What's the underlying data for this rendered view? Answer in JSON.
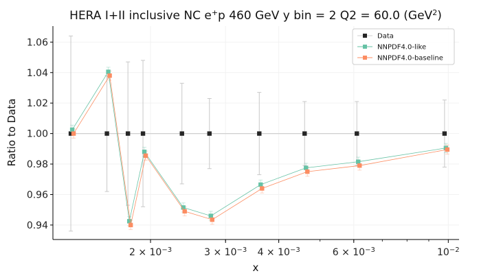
{
  "chart_data": {
    "type": "line",
    "title": "HERA I+II inclusive NC e$^+$p 460 GeV y bin = 2 Q2 = 60.0 (GeV$^2$)",
    "title_parts": {
      "prefix": "HERA I+II inclusive NC e",
      "sup1": "+",
      "middle": "p 460 GeV y bin = 2 Q2 = 60.0 (GeV",
      "sup2": "2",
      "suffix": ")"
    },
    "xlabel": "x",
    "ylabel": "Ratio to Data",
    "xscale": "log",
    "xlim": [
      0.00118,
      0.0106
    ],
    "ylim": [
      0.9305,
      1.0705
    ],
    "x_ticks": [
      {
        "value": 0.002,
        "mantissa": "2 × 10",
        "exp": "−3"
      },
      {
        "value": 0.003,
        "mantissa": "3 × 10",
        "exp": "−3"
      },
      {
        "value": 0.004,
        "mantissa": "4 × 10",
        "exp": "−3"
      },
      {
        "value": 0.006,
        "mantissa": "6 × 10",
        "exp": "−3"
      },
      {
        "value": 0.01,
        "mantissa": "10",
        "exp": "−2"
      }
    ],
    "y_ticks": [
      0.94,
      0.96,
      0.98,
      1.0,
      1.02,
      1.04,
      1.06
    ],
    "y_tick_labels": [
      "0.94",
      "0.96",
      "0.98",
      "1.00",
      "1.02",
      "1.04",
      "1.06"
    ],
    "grid": true,
    "legend_position": "top-right",
    "series": [
      {
        "name": "Data",
        "color": "#262626",
        "x": [
          0.0013,
          0.00158,
          0.00177,
          0.00192,
          0.00237,
          0.00275,
          0.0036,
          0.0046,
          0.0061,
          0.0098
        ],
        "values": [
          1.0,
          1.0,
          1.0,
          1.0,
          1.0,
          1.0,
          1.0,
          1.0,
          1.0,
          1.0
        ],
        "errors": [
          0.064,
          0.038,
          0.047,
          0.048,
          0.033,
          0.023,
          0.027,
          0.021,
          0.021,
          0.022
        ]
      },
      {
        "name": "NNPDF4.0-like",
        "color": "#66c2a5",
        "x": [
          0.0013,
          0.00158,
          0.00177,
          0.00192,
          0.00237,
          0.00275,
          0.0036,
          0.0046,
          0.0061,
          0.0098
        ],
        "values": [
          1.0025,
          1.0405,
          0.9425,
          0.988,
          0.9515,
          0.946,
          0.9665,
          0.9775,
          0.9815,
          0.9905
        ],
        "errors": [
          0.003,
          0.003,
          0.003,
          0.003,
          0.003,
          0.003,
          0.003,
          0.003,
          0.003,
          0.003
        ]
      },
      {
        "name": "NNPDF4.0-baseline",
        "color": "#fc8d62",
        "x": [
          0.0013,
          0.00158,
          0.00177,
          0.00192,
          0.00237,
          0.00275,
          0.0036,
          0.0046,
          0.0061,
          0.0098
        ],
        "values": [
          1.0,
          1.038,
          0.94,
          0.9855,
          0.949,
          0.9435,
          0.964,
          0.975,
          0.979,
          0.9895
        ],
        "errors": [
          0.003,
          0.003,
          0.003,
          0.003,
          0.003,
          0.003,
          0.003,
          0.003,
          0.003,
          0.003
        ]
      }
    ]
  }
}
